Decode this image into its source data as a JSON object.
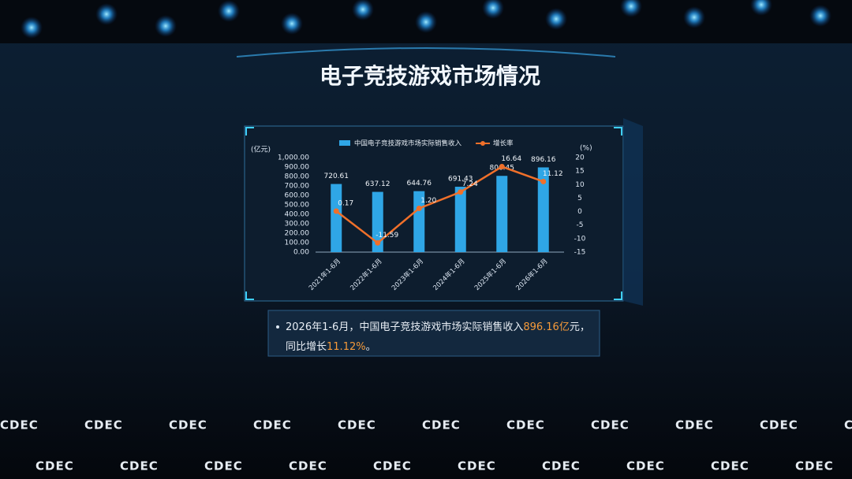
{
  "title": "电子竞技游戏市场情况",
  "chart_data": {
    "type": "bar-line",
    "categories": [
      "2021年1-6月",
      "2022年1-6月",
      "2023年1-6月",
      "2024年1-6月",
      "2025年1-6月",
      "2026年1-6月"
    ],
    "series": [
      {
        "name": "中国电子竞技游戏市场实际销售收入",
        "color": "#2fa6e6",
        "type": "bar",
        "values": [
          720.61,
          637.12,
          644.76,
          691.43,
          806.45,
          896.16
        ]
      },
      {
        "name": "增长率",
        "color": "#f0702a",
        "type": "line",
        "axis": "y2",
        "values": [
          0.17,
          -11.59,
          1.2,
          7.24,
          16.64,
          11.12
        ],
        "value_labels": [
          "0.17",
          "-11.59",
          "1.20",
          "7.24",
          "16.64",
          "11.12"
        ]
      }
    ],
    "ylabel": "(亿元)",
    "y2label": "(%)",
    "ylim": [
      0,
      1000
    ],
    "yticks": [
      {
        "value": 0,
        "label": "0.00"
      },
      {
        "value": 100,
        "label": "100.00"
      },
      {
        "value": 200,
        "label": "200.00"
      },
      {
        "value": 300,
        "label": "300.00"
      },
      {
        "value": 400,
        "label": "400.00"
      },
      {
        "value": 500,
        "label": "500.00"
      },
      {
        "value": 600,
        "label": "600.00"
      },
      {
        "value": 700,
        "label": "700.00"
      },
      {
        "value": 800,
        "label": "800.00"
      },
      {
        "value": 900,
        "label": "900.00"
      },
      {
        "value": 1000,
        "label": "1,000.00"
      }
    ],
    "y2lim": [
      -15,
      20
    ],
    "y2ticks": [
      -15,
      -10,
      -5,
      0,
      5,
      10,
      15,
      20
    ],
    "legend": "top"
  },
  "summary": {
    "line1": [
      "2026年1-6月，中国电子竞技游戏市场实际销售收入",
      "896.16亿",
      "元，"
    ],
    "line2": [
      "同比增长",
      "11.12%",
      "。"
    ]
  },
  "backdrop_logo": "CDEC"
}
